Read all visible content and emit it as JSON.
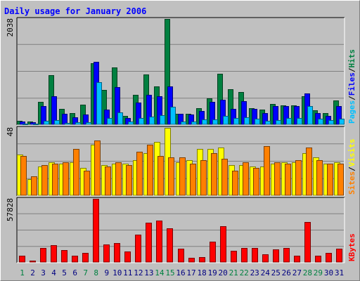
{
  "chart_data": {
    "type": "bar",
    "title": "Daily usage for January 2006",
    "colors": {
      "pages": "#00c0ff",
      "files": "#0000ff",
      "hits": "#008040",
      "sites": "#ff8000",
      "visits": "#ffff00",
      "kbytes": "#ff0000",
      "title": "#0000ff",
      "weekend_label": "#008040",
      "weekday_label": "#000080"
    },
    "categories": [
      "1",
      "2",
      "3",
      "4",
      "5",
      "6",
      "7",
      "8",
      "9",
      "10",
      "11",
      "12",
      "13",
      "14",
      "15",
      "16",
      "17",
      "18",
      "19",
      "20",
      "21",
      "22",
      "23",
      "24",
      "25",
      "26",
      "27",
      "28",
      "29",
      "30",
      "31"
    ],
    "weekend_days": [
      "1",
      "7",
      "8",
      "14",
      "15",
      "21",
      "22",
      "28",
      "29"
    ],
    "panels": [
      {
        "id": "usage",
        "y_max_label": "2038",
        "ylim": [
          0,
          2038
        ],
        "legend": [
          {
            "text": "Pages",
            "color_key": "pages"
          },
          {
            "text": "/",
            "color_key": "separator"
          },
          {
            "text": "Files",
            "color_key": "files"
          },
          {
            "text": "/",
            "color_key": "separator"
          },
          {
            "text": "Hits",
            "color_key": "hits"
          }
        ],
        "series": [
          {
            "name": "Hits",
            "color_key": "hits",
            "values": [
              85,
              70,
              440,
              960,
              310,
              230,
              390,
              1190,
              680,
              1100,
              170,
              580,
              970,
              740,
              2038,
              220,
              210,
              330,
              510,
              990,
              690,
              630,
              330,
              300,
              410,
              380,
              380,
              560,
              290,
              230,
              470
            ]
          },
          {
            "name": "Files",
            "color_key": "files",
            "values": [
              70,
              50,
              360,
              550,
              210,
              150,
              200,
              1220,
              300,
              730,
              140,
              430,
              580,
              550,
              740,
              210,
              200,
              270,
              450,
              490,
              310,
              460,
              310,
              230,
              360,
              370,
              370,
              610,
              230,
              170,
              360
            ]
          },
          {
            "name": "Pages",
            "color_key": "pages",
            "values": [
              30,
              25,
              80,
              100,
              40,
              50,
              50,
              830,
              140,
              240,
              70,
              140,
              160,
              190,
              350,
              70,
              70,
              110,
              110,
              170,
              140,
              150,
              120,
              80,
              100,
              130,
              130,
              360,
              120,
              100,
              120
            ]
          }
        ]
      },
      {
        "id": "visitors",
        "y_max_label": "48",
        "ylim": [
          0,
          48
        ],
        "legend": [
          {
            "text": "Sites",
            "color_key": "sites"
          },
          {
            "text": "/",
            "color_key": "separator"
          },
          {
            "text": "Visits",
            "color_key": "visits"
          }
        ],
        "series": [
          {
            "name": "Visits",
            "color_key": "visits",
            "values": [
              29,
              12,
              21,
              24,
              23,
              24,
              20,
              36,
              22,
              23,
              23,
              25,
              30,
              38,
              48,
              24,
              25,
              33,
              33,
              34,
              22,
              22,
              21,
              21,
              23,
              24,
              24,
              30,
              27,
              23,
              24
            ]
          },
          {
            "name": "Sites",
            "color_key": "sites",
            "values": [
              28,
              14,
              22,
              23,
              24,
              33,
              18,
              39,
              21,
              24,
              22,
              31,
              36,
              28,
              27,
              27,
              23,
              25,
              30,
              26,
              18,
              24,
              20,
              35,
              24,
              23,
              25,
              34,
              25,
              23,
              23
            ]
          }
        ]
      },
      {
        "id": "kbytes",
        "y_max_label": "57828",
        "ylim": [
          0,
          57828
        ],
        "legend": [
          {
            "text": "KBytes",
            "color_key": "kbytes"
          }
        ],
        "series": [
          {
            "name": "KBytes",
            "color_key": "kbytes",
            "values": [
              6400,
              2000,
              13200,
              15900,
              11300,
              6300,
              8600,
              57828,
              16400,
              18000,
              10100,
              25200,
              36500,
              38200,
              31000,
              12800,
              4200,
              4900,
              19000,
              33000,
              10500,
              13100,
              13500,
              7700,
              12200,
              13100,
              6400,
              37000,
              6400,
              9000,
              13000
            ]
          }
        ]
      }
    ]
  }
}
